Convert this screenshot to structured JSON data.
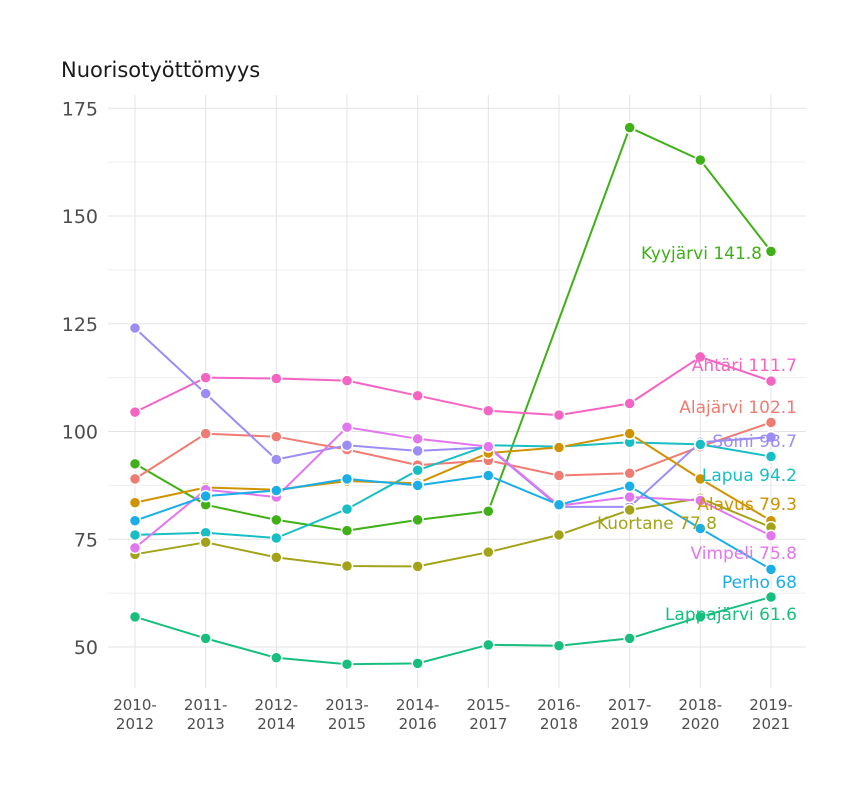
{
  "chart_data": {
    "type": "line",
    "title": "Nuorisotyöttömyys",
    "xlabel": "",
    "ylabel": "",
    "ylim": [
      40,
      177
    ],
    "yticks": [
      50,
      75,
      100,
      125,
      150,
      175
    ],
    "categories": [
      "2010-2012",
      "2011-2013",
      "2012-2014",
      "2013-2015",
      "2014-2016",
      "2015-2017",
      "2016-2018",
      "2017-2019",
      "2018-2020",
      "2019-2021"
    ],
    "grid": true,
    "legend": "none",
    "series": [
      {
        "name": "Kyyjärvi",
        "end_label": "Kyyjärvi 141.8",
        "color": "#3fb017",
        "values": [
          92.5,
          83,
          79.5,
          77,
          79.5,
          81.5,
          null,
          170.5,
          163,
          141.8
        ]
      },
      {
        "name": "Ähtäri",
        "end_label": "Ähtäri 111.7",
        "color": "#f564c2",
        "values": [
          104.5,
          112.5,
          112.3,
          111.8,
          108.3,
          104.8,
          103.8,
          106.5,
          117.3,
          111.7
        ]
      },
      {
        "name": "Alajärvi",
        "end_label": "Alajärvi 102.1",
        "color": "#f07b72",
        "values": [
          89,
          99.5,
          98.8,
          95.8,
          92.2,
          93.3,
          89.8,
          90.3,
          96.5,
          102.1
        ]
      },
      {
        "name": "Soini",
        "end_label": "Soini 98.7",
        "color": "#9c8cf5",
        "values": [
          124,
          108.8,
          93.5,
          96.8,
          95.5,
          96.3,
          82.5,
          82.5,
          97.5,
          98.7
        ]
      },
      {
        "name": "Lapua",
        "end_label": "Lapua 94.2",
        "color": "#17bfc4",
        "values": [
          76,
          76.5,
          75.3,
          82,
          91,
          96.8,
          96.5,
          97.5,
          97,
          94.2
        ]
      },
      {
        "name": "Alavus",
        "end_label": "Alavus 79.3",
        "color": "#cf9300",
        "values": [
          83.5,
          87,
          86.5,
          88.5,
          88,
          95,
          96.3,
          99.5,
          89,
          79.3
        ]
      },
      {
        "name": "Kuortane",
        "end_label": "Kuortane 77.8",
        "color": "#a3a319",
        "values": [
          71.5,
          74.3,
          70.8,
          68.8,
          68.7,
          72,
          76,
          81.8,
          84.5,
          77.8
        ]
      },
      {
        "name": "Vimpeli",
        "end_label": "Vimpeli 75.8",
        "color": "#e276ee",
        "values": [
          73,
          86.5,
          84.8,
          101,
          98.3,
          96.5,
          82.8,
          84.8,
          84,
          75.8
        ]
      },
      {
        "name": "Perho",
        "end_label": "Perho 68",
        "color": "#1aaee8",
        "values": [
          79.3,
          85,
          86.3,
          89,
          87.5,
          89.8,
          83,
          87.3,
          77.5,
          68
        ]
      },
      {
        "name": "Lappajärvi",
        "end_label": "Lappajärvi 61.6",
        "color": "#17bf7f",
        "values": [
          57,
          52,
          47.5,
          46,
          46.2,
          50.5,
          50.3,
          52,
          57,
          61.6
        ]
      }
    ]
  }
}
